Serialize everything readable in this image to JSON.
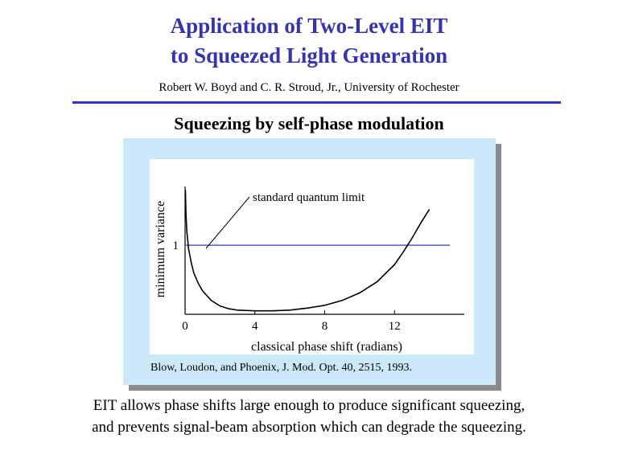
{
  "slide": {
    "title_line1": "Application of Two-Level EIT",
    "title_line2": "to Squeezed Light Generation",
    "authors": "Robert W. Boyd and C. R. Stroud, Jr., University of Rochester",
    "subtitle": "Squeezing by self-phase modulation",
    "citation": "Blow, Loudon,  and Phoenix, J. Mod. Opt. 40, 2515, 1993.",
    "body_line1": "EIT allows phase shifts large enough to produce significant squeezing,",
    "body_line2": "and prevents signal-beam absorption which can degrade the squeezing.",
    "colors": {
      "title": "#3333b3",
      "rule": "#3333cc",
      "panel": "#cce8fb",
      "limit_line": "#2222aa"
    }
  },
  "chart_data": {
    "type": "line",
    "xlabel": "classical phase shift (radians)",
    "ylabel": "minimum variance",
    "x_ticks": [
      0,
      4,
      8,
      12
    ],
    "y_ticks": [
      1
    ],
    "xlim": [
      0,
      16
    ],
    "ylim": [
      0,
      1.85
    ],
    "annotation": "standard quantum limit",
    "reference_line": {
      "y": 1
    },
    "series": [
      {
        "points": [
          [
            0.02,
            1.8
          ],
          [
            0.05,
            1.45
          ],
          [
            0.1,
            1.2
          ],
          [
            0.2,
            0.95
          ],
          [
            0.35,
            0.75
          ],
          [
            0.5,
            0.6
          ],
          [
            0.75,
            0.45
          ],
          [
            1.0,
            0.34
          ],
          [
            1.5,
            0.2
          ],
          [
            2.0,
            0.12
          ],
          [
            2.5,
            0.08
          ],
          [
            3.0,
            0.06
          ],
          [
            4.0,
            0.05
          ],
          [
            5.0,
            0.05
          ],
          [
            6.0,
            0.06
          ],
          [
            7.0,
            0.09
          ],
          [
            8.0,
            0.13
          ],
          [
            9.0,
            0.2
          ],
          [
            10.0,
            0.31
          ],
          [
            11.0,
            0.47
          ],
          [
            12.0,
            0.72
          ],
          [
            12.5,
            0.9
          ],
          [
            13.0,
            1.1
          ],
          [
            13.5,
            1.32
          ],
          [
            14.0,
            1.52
          ]
        ]
      }
    ]
  }
}
